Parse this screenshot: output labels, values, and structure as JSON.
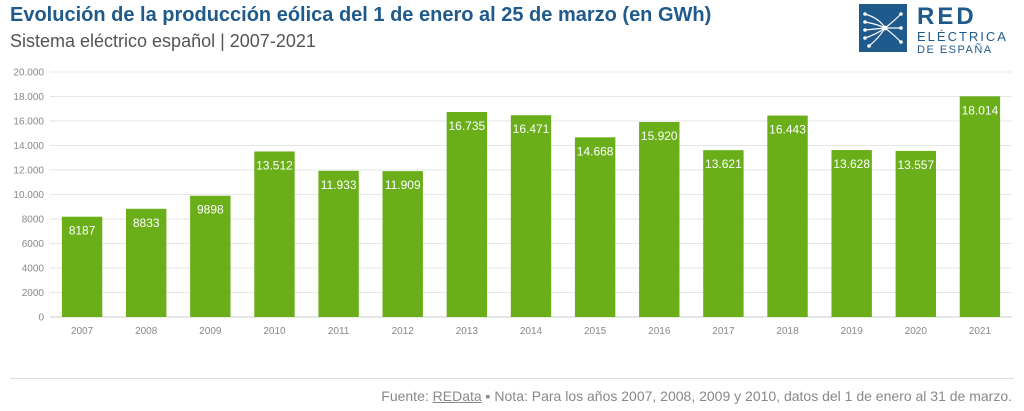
{
  "header": {
    "title": "Evolución de la producción eólica del 1 de enero al 25 de marzo (en GWh)",
    "subtitle": "Sistema eléctrico español | 2007-2021"
  },
  "logo": {
    "line1": "RED",
    "line2": "ELÉCTRICA",
    "line3": "DE ESPAÑA"
  },
  "footer": {
    "prefix": "Fuente: ",
    "link": "REData",
    "note": " ▪ Nota: Para los años 2007, 2008, 2009 y 2010, datos del 1 de enero al 31 de marzo."
  },
  "chart_data": {
    "type": "bar",
    "title": "Evolución de la producción eólica del 1 de enero al 25 de marzo (en GWh)",
    "subtitle": "Sistema eléctrico español | 2007-2021",
    "categories": [
      "2007",
      "2008",
      "2009",
      "2010",
      "2011",
      "2012",
      "2013",
      "2014",
      "2015",
      "2016",
      "2017",
      "2018",
      "2019",
      "2020",
      "2021"
    ],
    "values": [
      8187,
      8833,
      9898,
      13512,
      11933,
      11909,
      16735,
      16471,
      14668,
      15920,
      13621,
      16443,
      13628,
      13557,
      18014
    ],
    "value_labels": [
      "8187",
      "8833",
      "9898",
      "13.512",
      "11.933",
      "11.909",
      "16.735",
      "16.471",
      "14.668",
      "15.920",
      "13.621",
      "16.443",
      "13.628",
      "13.557",
      "18.014"
    ],
    "yticks": [
      0,
      2000,
      4000,
      6000,
      8000,
      10000,
      12000,
      14000,
      16000,
      18000,
      20000
    ],
    "ytick_labels": [
      "0",
      "2000",
      "4000",
      "6000",
      "8000",
      "10.000",
      "12.000",
      "14.000",
      "16.000",
      "18.000",
      "20.000"
    ],
    "ylim": [
      0,
      20000
    ],
    "xlabel": "",
    "ylabel": "",
    "grid": true,
    "legend": "none",
    "bar_color": "#6aaf1a",
    "grid_color": "#e6e6e6"
  }
}
